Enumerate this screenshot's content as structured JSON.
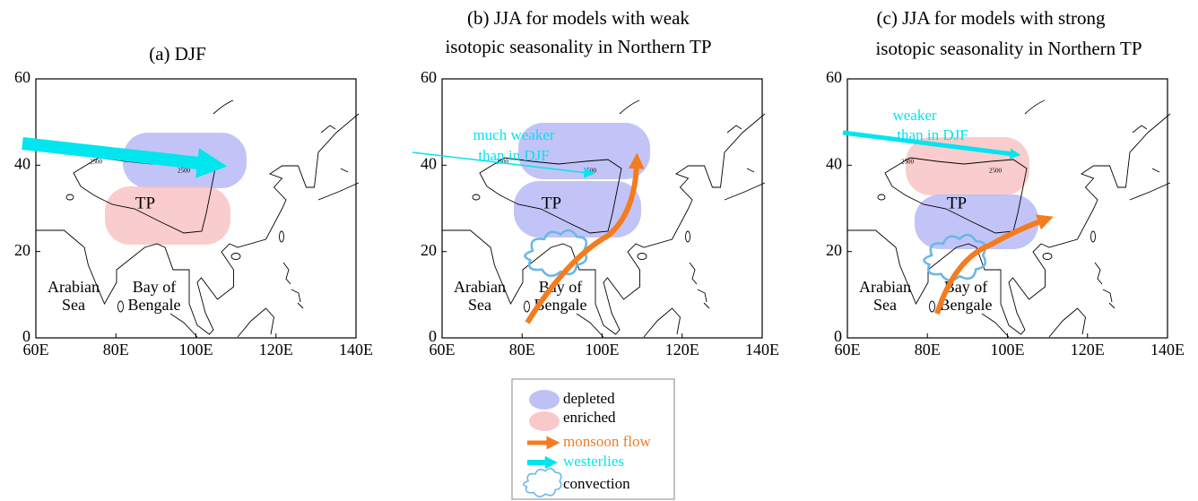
{
  "panels": [
    {
      "title": [
        "(a) DJF"
      ],
      "yticks": [
        "60",
        "40",
        "20",
        "0"
      ],
      "xticks": [
        "60E",
        "80E",
        "100E",
        "120E",
        "140E"
      ],
      "contour_labels": [
        "2500",
        "2500"
      ],
      "tp": "TP",
      "arabian_sea": [
        "Arabian",
        "Sea"
      ],
      "bay": [
        "Bay of",
        "Bengale"
      ]
    },
    {
      "title": [
        "(b) JJA for models with weak",
        "isotopic seasonality in Northern TP"
      ],
      "yticks": [
        "60",
        "40",
        "20",
        "0"
      ],
      "xticks": [
        "60E",
        "80E",
        "100E",
        "120E",
        "140E"
      ],
      "contour_labels": [
        "2500",
        "2500"
      ],
      "tp": "TP",
      "arabian_sea": [
        "Arabian",
        "Sea"
      ],
      "bay": [
        "Bay of",
        "Bengale"
      ],
      "annotation": [
        "much weaker",
        "than in DJF"
      ]
    },
    {
      "title": [
        "(c) JJA for models with strong",
        "isotopic seasonality in Northern TP"
      ],
      "yticks": [
        "60",
        "40",
        "20",
        "0"
      ],
      "xticks": [
        "60E",
        "80E",
        "100E",
        "120E",
        "140E"
      ],
      "contour_labels": [
        "2500",
        "2500"
      ],
      "tp": "TP",
      "arabian_sea": [
        "Arabian",
        "Sea"
      ],
      "bay": [
        "Bay of",
        "Bengale"
      ],
      "annotation": [
        "weaker",
        "than in DJF"
      ]
    }
  ],
  "legend": [
    "depleted",
    "enriched",
    "monsoon flow",
    "westerlies",
    "convection"
  ]
}
